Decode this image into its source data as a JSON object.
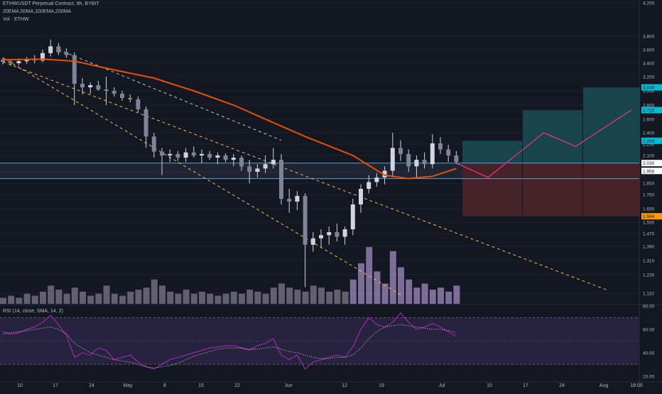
{
  "header": {
    "symbol_line": "ETHWUSDT Perpetual Contract, 8h, BYBIT",
    "ma_line": "20EMA,50MA,100EMA,200MA",
    "vol_line": "Vol · ETHW"
  },
  "rsi_title": "RSI (14, close, SMA, 14, 2)",
  "colors": {
    "background": "#131722",
    "up_candle": "#d1d4dc",
    "down_candle": "#d1d4dc",
    "ma_line": "#e65100",
    "trendline": "#ffb74d",
    "horizontal_level": "#4fa3e0",
    "target_zone": "#1a4a52",
    "stop_zone": "#4a2329",
    "projection": "#d1337e",
    "volume": "#a08cc0",
    "rsi_line": "#9c27b0",
    "rsi_band": "#2a2340"
  },
  "chart_data": [
    {
      "type": "candlestick",
      "title": "ETHWUSDT Perpetual Contract, 8h, BYBIT",
      "price_axis": {
        "ticks": [
          4.2,
          3.8,
          3.6,
          3.4,
          3.2,
          3.0,
          2.8,
          2.6,
          2.4,
          2.25,
          2.1,
          1.95,
          1.85,
          1.75,
          1.65,
          1.55,
          1.47,
          1.39,
          1.31,
          1.23,
          1.11
        ],
        "tick_labels": [
          "4.200",
          "3.800",
          "3.600",
          "3.400",
          "3.200",
          "3.000",
          "2.800",
          "2.600",
          "2.400",
          "2.250",
          "2.100",
          "1.950",
          "1.850",
          "1.750",
          "1.650",
          "1.550",
          "1.470",
          "1.390",
          "1.310",
          "1.230",
          "1.110"
        ],
        "ylim": [
          1.0,
          4.25
        ]
      },
      "time_axis": {
        "labels": [
          "10",
          "17",
          "24",
          "May",
          "8",
          "15",
          "22",
          "Jun",
          "12",
          "19",
          "Jul",
          "10",
          "17",
          "24",
          "Aug",
          "18:00"
        ]
      },
      "price_badges": [
        {
          "label": "3.049",
          "value": 3.049,
          "color": "#00bcd4"
        },
        {
          "label": "2.729",
          "value": 2.729,
          "color": "#00bcd4"
        },
        {
          "label": "2.294",
          "value": 2.294,
          "color": "#00bcd4"
        },
        {
          "label": "2.030",
          "value": 2.03,
          "color": "#ffffff"
        },
        {
          "label": "1.958",
          "value": 1.958,
          "color": "#ffffff"
        },
        {
          "label": "1.594",
          "value": 1.594,
          "color": "#ff9800"
        }
      ],
      "horizontal_levels": [
        2.03,
        1.89
      ],
      "candles": [
        [
          3.45,
          3.48,
          3.38,
          3.42
        ],
        [
          3.42,
          3.46,
          3.36,
          3.4
        ],
        [
          3.4,
          3.47,
          3.37,
          3.43
        ],
        [
          3.43,
          3.49,
          3.39,
          3.45
        ],
        [
          3.45,
          3.52,
          3.4,
          3.44
        ],
        [
          3.44,
          3.6,
          3.41,
          3.55
        ],
        [
          3.55,
          3.75,
          3.5,
          3.65
        ],
        [
          3.65,
          3.7,
          3.52,
          3.56
        ],
        [
          3.56,
          3.62,
          3.48,
          3.52
        ],
        [
          3.52,
          3.56,
          2.8,
          3.1
        ],
        [
          3.1,
          3.18,
          2.95,
          3.05
        ],
        [
          3.05,
          3.12,
          2.96,
          3.08
        ],
        [
          3.08,
          3.14,
          3.0,
          3.02
        ],
        [
          3.02,
          3.2,
          2.8,
          3.0
        ],
        [
          3.0,
          3.05,
          2.92,
          2.96
        ],
        [
          2.96,
          3.0,
          2.86,
          2.9
        ],
        [
          2.9,
          2.95,
          2.84,
          2.88
        ],
        [
          2.88,
          2.92,
          2.7,
          2.74
        ],
        [
          2.74,
          2.78,
          2.2,
          2.35
        ],
        [
          2.35,
          2.4,
          2.08,
          2.15
        ],
        [
          2.15,
          2.2,
          1.92,
          2.1
        ],
        [
          2.1,
          2.18,
          2.04,
          2.12
        ],
        [
          2.12,
          2.16,
          2.05,
          2.08
        ],
        [
          2.08,
          2.2,
          2.04,
          2.14
        ],
        [
          2.14,
          2.22,
          2.08,
          2.1
        ],
        [
          2.1,
          2.18,
          2.03,
          2.12
        ],
        [
          2.12,
          2.16,
          2.06,
          2.08
        ],
        [
          2.08,
          2.14,
          2.02,
          2.1
        ],
        [
          2.1,
          2.13,
          2.04,
          2.06
        ],
        [
          2.06,
          2.12,
          2.0,
          2.08
        ],
        [
          2.08,
          2.1,
          1.96,
          2.0
        ],
        [
          2.0,
          2.06,
          1.85,
          1.95
        ],
        [
          1.95,
          2.02,
          1.9,
          1.98
        ],
        [
          1.98,
          2.1,
          1.94,
          2.02
        ],
        [
          2.02,
          2.2,
          1.98,
          2.06
        ],
        [
          2.06,
          2.12,
          1.68,
          1.72
        ],
        [
          1.72,
          1.8,
          1.62,
          1.7
        ],
        [
          1.7,
          1.78,
          1.64,
          1.74
        ],
        [
          1.74,
          1.76,
          1.15,
          1.4
        ],
        [
          1.4,
          1.48,
          1.36,
          1.44
        ],
        [
          1.44,
          1.5,
          1.38,
          1.46
        ],
        [
          1.46,
          1.52,
          1.4,
          1.48
        ],
        [
          1.48,
          1.54,
          1.42,
          1.45
        ],
        [
          1.45,
          1.52,
          1.4,
          1.5
        ],
        [
          1.5,
          1.72,
          1.46,
          1.68
        ],
        [
          1.68,
          1.84,
          1.62,
          1.8
        ],
        [
          1.8,
          1.92,
          1.76,
          1.86
        ],
        [
          1.86,
          1.94,
          1.82,
          1.9
        ],
        [
          1.9,
          2.0,
          1.84,
          1.96
        ],
        [
          1.96,
          2.4,
          1.9,
          2.2
        ],
        [
          2.2,
          2.3,
          2.05,
          2.12
        ],
        [
          2.12,
          2.18,
          1.95,
          2.0
        ],
        [
          2.0,
          2.1,
          1.9,
          2.06
        ],
        [
          2.06,
          2.14,
          1.98,
          2.02
        ],
        [
          2.02,
          2.38,
          1.98,
          2.26
        ],
        [
          2.26,
          2.34,
          2.12,
          2.18
        ],
        [
          2.18,
          2.24,
          2.04,
          2.1
        ],
        [
          2.1,
          2.16,
          2.02,
          2.04
        ]
      ],
      "moving_average": [
        [
          0,
          3.45
        ],
        [
          5,
          3.46
        ],
        [
          9,
          3.43
        ],
        [
          14,
          3.3
        ],
        [
          19,
          3.18
        ],
        [
          24,
          3.0
        ],
        [
          29,
          2.8
        ],
        [
          34,
          2.55
        ],
        [
          38,
          2.35
        ],
        [
          44,
          2.1
        ],
        [
          48,
          1.92
        ],
        [
          51,
          1.89
        ],
        [
          54,
          1.91
        ],
        [
          57,
          1.98
        ]
      ],
      "trendlines": [
        {
          "from": [
            0,
            3.42
          ],
          "to": [
            76,
            1.13
          ]
        },
        {
          "from": [
            0,
            3.48
          ],
          "to": [
            50,
            1.1
          ]
        },
        {
          "from": [
            7,
            3.6
          ],
          "to": [
            35,
            2.3
          ]
        }
      ],
      "projection_path": [
        [
          57,
          2.03
        ],
        [
          61,
          1.9
        ],
        [
          68,
          2.4
        ],
        [
          72,
          2.22
        ],
        [
          79,
          2.73
        ]
      ],
      "positions": [
        {
          "target": 2.294,
          "entry": 2.03,
          "stop": 1.594
        },
        {
          "target": 2.729,
          "entry": 2.03,
          "stop": 1.594
        },
        {
          "target": 3.049,
          "entry": 2.03,
          "stop": 1.594
        }
      ],
      "volume": [
        3,
        4,
        3,
        5,
        4,
        6,
        9,
        7,
        5,
        8,
        6,
        4,
        5,
        9,
        5,
        4,
        6,
        7,
        8,
        12,
        9,
        6,
        5,
        7,
        5,
        6,
        5,
        4,
        5,
        6,
        5,
        7,
        6,
        5,
        8,
        10,
        8,
        7,
        6,
        9,
        8,
        6,
        7,
        6,
        12,
        20,
        28,
        16,
        10,
        26,
        18,
        12,
        8,
        10,
        7,
        8,
        6,
        9
      ]
    },
    {
      "type": "line",
      "title": "RSI (14, close, SMA, 14, 2)",
      "ylim": [
        15,
        80
      ],
      "y_ticks": [
        80.0,
        60.0,
        40.0,
        20.0
      ],
      "y_tick_labels": [
        "80.00",
        "60.00",
        "40.00",
        "20.00"
      ],
      "bands": [
        70,
        30
      ],
      "series": [
        {
          "values": [
            58,
            56,
            57,
            60,
            62,
            66,
            72,
            64,
            55,
            36,
            40,
            38,
            44,
            42,
            34,
            36,
            38,
            32,
            28,
            26,
            30,
            34,
            36,
            38,
            40,
            42,
            44,
            45,
            46,
            46,
            44,
            42,
            46,
            48,
            52,
            38,
            34,
            38,
            26,
            32,
            34,
            36,
            38,
            36,
            45,
            60,
            70,
            64,
            62,
            66,
            74,
            66,
            60,
            62,
            65,
            62,
            58,
            54
          ]
        },
        {
          "values": [
            56,
            57,
            58,
            59,
            60,
            61,
            62,
            60,
            56,
            48,
            44,
            40,
            38,
            36,
            34,
            33,
            32,
            30,
            28,
            27,
            28,
            29,
            31,
            34,
            37,
            39,
            41,
            43,
            44,
            44,
            44,
            43,
            43,
            44,
            45,
            43,
            41,
            40,
            38,
            36,
            35,
            35,
            36,
            36,
            38,
            44,
            52,
            58,
            62,
            63,
            64,
            63,
            62,
            61,
            60,
            60,
            59,
            57
          ]
        }
      ]
    }
  ]
}
